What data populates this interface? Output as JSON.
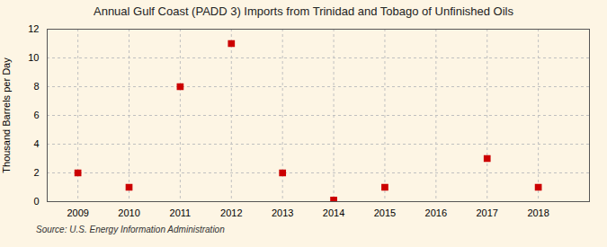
{
  "chart_data": {
    "type": "scatter",
    "title": "Annual Gulf Coast (PADD 3) Imports from Trinidad and Tobago of Unfinished Oils",
    "ylabel": "Thousand Barrels per Day",
    "source": "Source: U.S. Energy Information Administration",
    "x": [
      2009,
      2010,
      2011,
      2012,
      2013,
      2014,
      2015,
      2016,
      2017,
      2018
    ],
    "values": [
      2,
      1,
      8,
      11,
      2,
      0.1,
      1,
      null,
      3,
      1
    ],
    "color": "#cc0000",
    "marker": "square",
    "xlim": [
      2008.4,
      2019.0
    ],
    "ylim": [
      0,
      12
    ],
    "xticks": [
      2009,
      2010,
      2011,
      2012,
      2013,
      2014,
      2015,
      2016,
      2017,
      2018
    ],
    "yticks": [
      0,
      2,
      4,
      6,
      8,
      10,
      12
    ],
    "grid": true
  }
}
